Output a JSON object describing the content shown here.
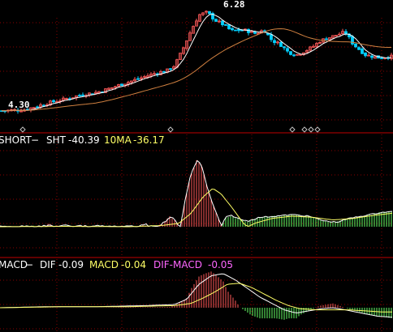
{
  "colors": {
    "background": "#000000",
    "grid": "#8a0000",
    "divider": "#c00000",
    "up": "#ff5a5a",
    "down": "#00d0ff",
    "ma_short": "#ffffff",
    "ma_long": "#d08040",
    "sht_line": "#ffffff",
    "ma10_line": "#ffff66",
    "macd_pos": "#ff5a5a",
    "macd_neg": "#66ff66",
    "dif_line": "#ffffff",
    "dea_line": "#ffff66",
    "label_white": "#ffffff",
    "label_yellow": "#ffff66",
    "label_magenta": "#ff66ff",
    "marker": "#c0c0c0"
  },
  "price_panel": {
    "high_label": "6.28",
    "low_label": "4.30"
  },
  "short_panel": {
    "name": "SHORT",
    "dash": "−",
    "sht_label": "SHT",
    "sht_value": "-40.39",
    "ma_label": "10MA",
    "ma_value": "-36.17"
  },
  "macd_panel": {
    "name": "MACD",
    "dash": "−",
    "dif_label": "DIF",
    "dif_value": "-0.09",
    "macd_label": "MACD",
    "macd_value": "-0.04",
    "hist_label": "DIF-MACD",
    "hist_value": "-0.05"
  },
  "chart_data": [
    {
      "type": "line",
      "panel": "price",
      "description_of_data": "candlestick price series (open, high, low, close per bar)",
      "yrange": [
        4.1,
        6.35
      ],
      "price_anchors": [
        [
          0,
          4.3
        ],
        [
          30,
          4.32
        ],
        [
          60,
          4.45
        ],
        [
          80,
          4.52
        ],
        [
          100,
          4.6
        ],
        [
          120,
          4.65
        ],
        [
          135,
          4.72
        ],
        [
          150,
          4.8
        ],
        [
          170,
          4.9
        ],
        [
          190,
          5.0
        ],
        [
          205,
          5.05
        ],
        [
          215,
          5.15
        ],
        [
          225,
          5.45
        ],
        [
          235,
          5.8
        ],
        [
          245,
          6.1
        ],
        [
          255,
          6.15
        ],
        [
          265,
          6.0
        ],
        [
          275,
          5.92
        ],
        [
          285,
          5.8
        ],
        [
          300,
          5.82
        ],
        [
          315,
          5.75
        ],
        [
          325,
          5.82
        ],
        [
          335,
          5.62
        ],
        [
          345,
          5.55
        ],
        [
          355,
          5.4
        ],
        [
          365,
          5.35
        ],
        [
          375,
          5.42
        ],
        [
          385,
          5.5
        ],
        [
          395,
          5.62
        ],
        [
          410,
          5.7
        ],
        [
          425,
          5.78
        ],
        [
          435,
          5.55
        ],
        [
          450,
          5.35
        ],
        [
          465,
          5.3
        ],
        [
          484,
          5.32
        ]
      ],
      "diamond_markers_x": [
        28,
        210,
        360,
        375,
        383,
        391
      ]
    },
    {
      "type": "line",
      "panel": "short",
      "yrange": [
        -60,
        120
      ],
      "sht_anchors": [
        [
          0,
          0
        ],
        [
          40,
          -2
        ],
        [
          60,
          3
        ],
        [
          80,
          -4
        ],
        [
          100,
          2
        ],
        [
          120,
          -3
        ],
        [
          140,
          0
        ],
        [
          160,
          -2
        ],
        [
          180,
          3
        ],
        [
          190,
          -1
        ],
        [
          200,
          5
        ],
        [
          210,
          15
        ],
        [
          215,
          10
        ],
        [
          222,
          0
        ],
        [
          228,
          40
        ],
        [
          235,
          80
        ],
        [
          242,
          100
        ],
        [
          248,
          95
        ],
        [
          255,
          60
        ],
        [
          262,
          35
        ],
        [
          270,
          10
        ],
        [
          278,
          -25
        ],
        [
          285,
          -30
        ],
        [
          295,
          -20
        ],
        [
          305,
          -15
        ],
        [
          320,
          -25
        ],
        [
          340,
          -28
        ],
        [
          360,
          -32
        ],
        [
          380,
          -28
        ],
        [
          400,
          -15
        ],
        [
          415,
          -12
        ],
        [
          430,
          -22
        ],
        [
          450,
          -30
        ],
        [
          470,
          -38
        ],
        [
          484,
          -40
        ]
      ],
      "ma_anchors": [
        [
          0,
          0
        ],
        [
          80,
          -1
        ],
        [
          160,
          0
        ],
        [
          200,
          2
        ],
        [
          220,
          5
        ],
        [
          235,
          20
        ],
        [
          250,
          45
        ],
        [
          262,
          58
        ],
        [
          272,
          50
        ],
        [
          285,
          30
        ],
        [
          300,
          5
        ],
        [
          315,
          -10
        ],
        [
          335,
          -22
        ],
        [
          360,
          -28
        ],
        [
          385,
          -25
        ],
        [
          410,
          -18
        ],
        [
          435,
          -22
        ],
        [
          460,
          -30
        ],
        [
          484,
          -36
        ]
      ]
    },
    {
      "type": "line",
      "panel": "macd",
      "yrange": [
        -0.3,
        0.35
      ],
      "dif_anchors": [
        [
          0,
          0.0
        ],
        [
          60,
          0.01
        ],
        [
          120,
          0.01
        ],
        [
          180,
          0.02
        ],
        [
          215,
          0.03
        ],
        [
          230,
          0.08
        ],
        [
          245,
          0.22
        ],
        [
          260,
          0.3
        ],
        [
          275,
          0.32
        ],
        [
          290,
          0.26
        ],
        [
          305,
          0.18
        ],
        [
          320,
          0.1
        ],
        [
          335,
          0.04
        ],
        [
          350,
          -0.02
        ],
        [
          365,
          -0.05
        ],
        [
          380,
          -0.03
        ],
        [
          395,
          -0.01
        ],
        [
          410,
          0.0
        ],
        [
          425,
          -0.02
        ],
        [
          445,
          -0.05
        ],
        [
          465,
          -0.08
        ],
        [
          484,
          -0.09
        ]
      ],
      "dea_anchors": [
        [
          0,
          0.0
        ],
        [
          80,
          0.01
        ],
        [
          160,
          0.01
        ],
        [
          215,
          0.02
        ],
        [
          235,
          0.04
        ],
        [
          250,
          0.09
        ],
        [
          265,
          0.15
        ],
        [
          280,
          0.22
        ],
        [
          295,
          0.23
        ],
        [
          310,
          0.19
        ],
        [
          325,
          0.13
        ],
        [
          340,
          0.07
        ],
        [
          355,
          0.02
        ],
        [
          370,
          -0.01
        ],
        [
          390,
          -0.02
        ],
        [
          410,
          -0.02
        ],
        [
          430,
          -0.02
        ],
        [
          450,
          -0.03
        ],
        [
          470,
          -0.04
        ],
        [
          484,
          -0.04
        ]
      ]
    }
  ]
}
